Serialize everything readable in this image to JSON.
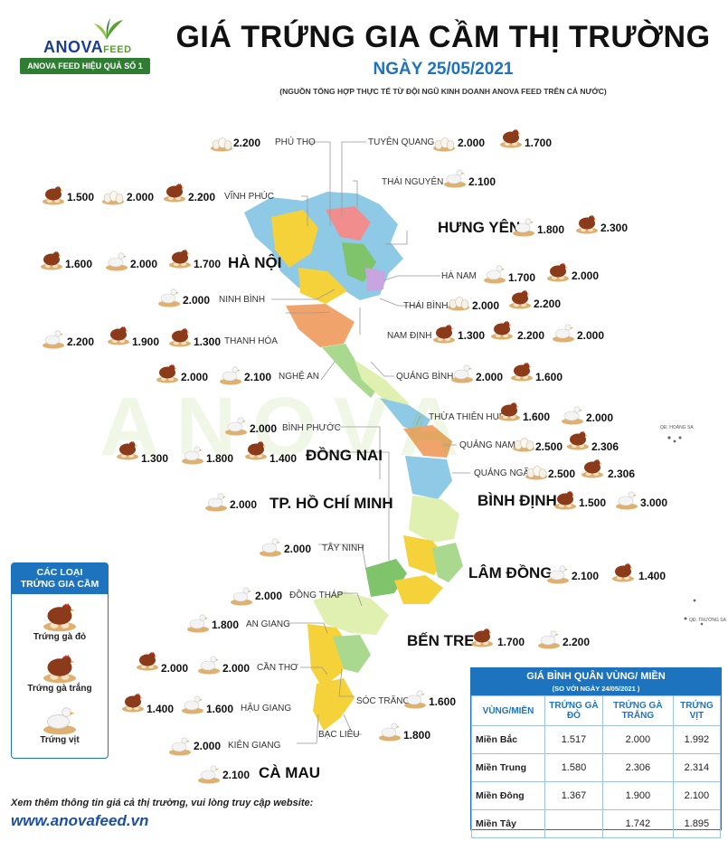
{
  "logo": {
    "brand": "ANOVA",
    "brand_suffix": "FEED",
    "slogan": "ANOVA FEED HIỆU QUẢ SỐ 1"
  },
  "header": {
    "title": "GIÁ TRỨNG GIA CẦM THỊ TRƯỜNG",
    "date": "NGÀY 25/05/2021",
    "source": "(NGUỒN TỔNG HỢP THỰC TẾ TỪ ĐỘI NGŨ KINH DOANH ANOVA FEED TRÊN CẢ NƯỚC)"
  },
  "watermark": "ANOVA",
  "islands": {
    "hoang_sa": "QĐ. HOÀNG SA",
    "truong_sa": "QĐ. TRƯỜNG SA"
  },
  "provinces": {
    "phu_tho": {
      "name": "PHÚ THỌ",
      "prices": [
        "2.200"
      ]
    },
    "tuyen_quang": {
      "name": "TUYÊN QUANG",
      "prices": [
        "2.000",
        "1.700"
      ]
    },
    "vinh_phuc": {
      "name": "VĨNH PHÚC",
      "prices": [
        "1.500",
        "2.000",
        "2.200"
      ]
    },
    "thai_nguyen": {
      "name": "THÁI NGUYÊN",
      "prices": [
        "2.100"
      ]
    },
    "hung_yen": {
      "name": "HƯNG YÊN",
      "prices": [
        "1.800",
        "2.300"
      ]
    },
    "ha_noi": {
      "name": "HÀ NỘI",
      "prices": [
        "1.600",
        "2.000",
        "1.700"
      ]
    },
    "ha_nam": {
      "name": "HÀ NAM",
      "prices": [
        "1.700",
        "2.000"
      ]
    },
    "ninh_binh": {
      "name": "NINH BÌNH",
      "prices": [
        "2.000"
      ]
    },
    "thai_binh": {
      "name": "THÁI BÌNH",
      "prices": [
        "2.000",
        "2.200"
      ]
    },
    "thanh_hoa": {
      "name": "THANH HÓA",
      "prices": [
        "2.200",
        "1.900",
        "1.300"
      ]
    },
    "nam_dinh": {
      "name": "NAM ĐỊNH",
      "prices": [
        "1.300",
        "2.200",
        "2.000"
      ]
    },
    "nghe_an": {
      "name": "NGHỆ AN",
      "prices": [
        "2.000",
        "2.100"
      ]
    },
    "quang_binh": {
      "name": "QUẢNG BÌNH",
      "prices": [
        "2.000",
        "1.600"
      ]
    },
    "thua_thien_hue": {
      "name": "THỪA THIÊN HUẾ",
      "prices": [
        "1.600",
        "2.000"
      ]
    },
    "binh_phuoc": {
      "name": "BÌNH PHƯỚC",
      "prices": [
        "2.000"
      ]
    },
    "quang_nam": {
      "name": "QUẢNG NAM",
      "prices": [
        "2.500",
        "2.306"
      ]
    },
    "dong_nai": {
      "name": "ĐỒNG NAI",
      "prices": [
        "1.300",
        "1.800",
        "1.400"
      ]
    },
    "quang_ngai": {
      "name": "QUẢNG NGÃI",
      "prices": [
        "2.500",
        "2.306"
      ]
    },
    "hcm": {
      "name": "TP. HỒ CHÍ MINH",
      "prices": [
        "2.000"
      ]
    },
    "binh_dinh": {
      "name": "BÌNH ĐỊNH",
      "prices": [
        "1.500",
        "3.000"
      ]
    },
    "tay_ninh": {
      "name": "TÂY NINH",
      "prices": [
        "2.000"
      ]
    },
    "lam_dong": {
      "name": "LÂM ĐỒNG",
      "prices": [
        "2.100",
        "1.400"
      ]
    },
    "dong_thap": {
      "name": "ĐỒNG THÁP",
      "prices": [
        "2.000"
      ]
    },
    "an_giang": {
      "name": "AN GIANG",
      "prices": [
        "1.800"
      ]
    },
    "ben_tre": {
      "name": "BẾN TRE:",
      "prices": [
        "1.700",
        "2.200"
      ]
    },
    "can_tho": {
      "name": "CẦN THƠ",
      "prices": [
        "2.000",
        "2.000"
      ]
    },
    "hau_giang": {
      "name": "HẬU GIANG",
      "prices": [
        "1.400",
        "1.600"
      ]
    },
    "soc_trang": {
      "name": "SÓC TRĂNG",
      "prices": [
        "1.600"
      ]
    },
    "kien_giang": {
      "name": "KIÊN GIANG",
      "prices": [
        "2.000"
      ]
    },
    "bac_lieu": {
      "name": "BẠC LIÊU",
      "prices": [
        "1.800"
      ]
    },
    "ca_mau": {
      "name": "CÀ MAU",
      "prices": [
        "2.100"
      ]
    }
  },
  "legend": {
    "title_1": "CÁC LOẠI",
    "title_2": "TRỨNG GIA CẦM",
    "items": [
      "Trứng gà đỏ",
      "Trứng gà trắng",
      "Trứng vịt"
    ]
  },
  "average": {
    "title": "GIÁ BÌNH QUÂN VÙNG/ MIỀN",
    "subtitle": "(SO VỚI NGÀY  24/05/2021       )",
    "headers": [
      "VÙNG/MIỀN",
      "TRỨNG GÀ ĐỎ",
      "TRỨNG GÀ TRẮNG",
      "TRỨNG VỊT"
    ],
    "rows": [
      [
        "Miền Bắc",
        "1.517",
        "2.000",
        "1.992"
      ],
      [
        "Miền Trung",
        "1.580",
        "2.306",
        "2.314"
      ],
      [
        "Miền Đông",
        "1.367",
        "1.900",
        "2.100"
      ],
      [
        "Miền Tây",
        "",
        "1.742",
        "1.895"
      ]
    ]
  },
  "footer": {
    "note": "Xem thêm thông tin giá cả thị trường, vui lòng truy cập website:",
    "website": "www.anovafeed.vn"
  },
  "colors": {
    "accent_blue": "#1e73be",
    "brand_green": "#5aa02c",
    "map_yellow": "#f5c518",
    "map_green": "#8cc63f"
  }
}
